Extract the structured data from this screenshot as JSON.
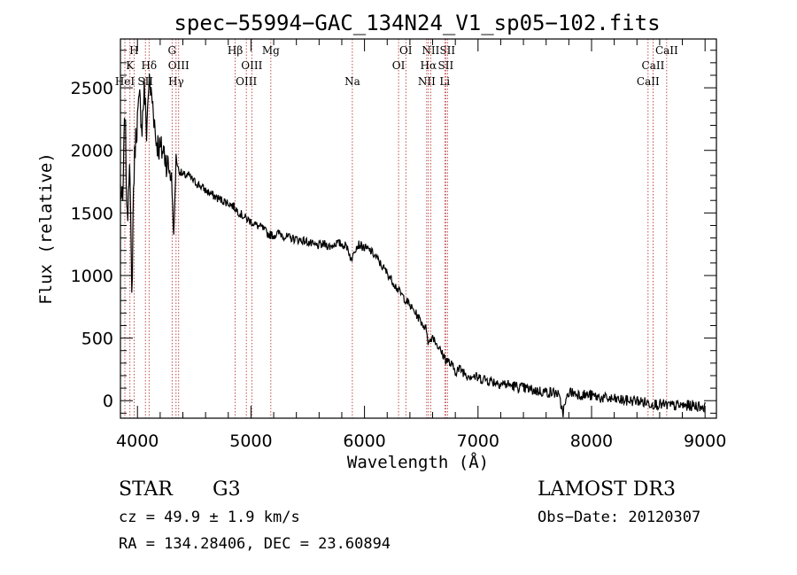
{
  "chart_data": {
    "type": "line",
    "title": "spec−55994−GAC_134N24_V1_sp05−102.fits",
    "xlabel": "Wavelength (Å)",
    "ylabel": "Flux (relative)",
    "xlim": [
      3850,
      9100
    ],
    "ylim": [
      -140,
      2890
    ],
    "xticks": [
      4000,
      5000,
      6000,
      7000,
      8000,
      9000
    ],
    "yticks": [
      0,
      500,
      1000,
      1500,
      2000,
      2500
    ],
    "series": [
      {
        "name": "flux",
        "x": [
          3850,
          3870,
          3890,
          3910,
          3930,
          3950,
          3965,
          3980,
          4000,
          4020,
          4040,
          4060,
          4080,
          4100,
          4120,
          4140,
          4160,
          4180,
          4200,
          4230,
          4260,
          4300,
          4320,
          4340,
          4360,
          4400,
          4450,
          4500,
          4550,
          4600,
          4650,
          4700,
          4750,
          4800,
          4850,
          4900,
          4950,
          5000,
          5050,
          5100,
          5150,
          5200,
          5250,
          5300,
          5350,
          5400,
          5450,
          5500,
          5550,
          5600,
          5650,
          5700,
          5750,
          5800,
          5850,
          5890,
          5900,
          5950,
          6000,
          6050,
          6100,
          6150,
          6200,
          6250,
          6300,
          6350,
          6400,
          6450,
          6500,
          6550,
          6563,
          6600,
          6650,
          6700,
          6750,
          6800,
          6850,
          6900,
          6950,
          7000,
          7050,
          7100,
          7150,
          7200,
          7300,
          7400,
          7500,
          7600,
          7700,
          7750,
          7800,
          7900,
          8000,
          8100,
          8200,
          8300,
          8400,
          8500,
          8600,
          8700,
          8800,
          8900,
          9000
        ],
        "y": [
          1700,
          1550,
          2350,
          1400,
          2000,
          800,
          1700,
          2050,
          2250,
          2400,
          2200,
          2500,
          2150,
          2550,
          2450,
          2350,
          2100,
          2050,
          2000,
          2000,
          1900,
          1800,
          1300,
          1950,
          1850,
          1800,
          1800,
          1750,
          1720,
          1680,
          1650,
          1620,
          1600,
          1580,
          1550,
          1500,
          1460,
          1430,
          1400,
          1380,
          1330,
          1320,
          1340,
          1310,
          1300,
          1290,
          1280,
          1270,
          1240,
          1240,
          1250,
          1230,
          1260,
          1250,
          1230,
          1100,
          1200,
          1250,
          1220,
          1200,
          1150,
          1080,
          1020,
          950,
          880,
          820,
          760,
          700,
          630,
          560,
          450,
          520,
          430,
          350,
          300,
          240,
          250,
          210,
          200,
          180,
          175,
          160,
          150,
          140,
          120,
          100,
          80,
          70,
          60,
          -90,
          70,
          50,
          40,
          20,
          10,
          0,
          0,
          -20,
          -30,
          -40,
          -40,
          -40,
          -50
        ]
      }
    ],
    "lines": [
      {
        "name": "H",
        "x": 3970,
        "row": 0
      },
      {
        "name": "K",
        "x": 3934,
        "row": 1
      },
      {
        "name": "HeI",
        "x": 3889,
        "row": 2
      },
      {
        "name": "Hδ",
        "x": 4102,
        "row": 1
      },
      {
        "name": "SII",
        "x": 4070,
        "row": 2
      },
      {
        "name": "G",
        "x": 4305,
        "row": 0
      },
      {
        "name": "OIII",
        "x": 4363,
        "row": 1
      },
      {
        "name": "Hγ",
        "x": 4340,
        "row": 2
      },
      {
        "name": "Hβ",
        "x": 4861,
        "row": 0
      },
      {
        "name": "OIII",
        "x": 5007,
        "row": 1
      },
      {
        "name": "OIII",
        "x": 4959,
        "row": 2
      },
      {
        "name": "Mg",
        "x": 5175,
        "row": 0
      },
      {
        "name": "Na",
        "x": 5893,
        "row": 2
      },
      {
        "name": "OI",
        "x": 6364,
        "row": 0
      },
      {
        "name": "OI",
        "x": 6300,
        "row": 1
      },
      {
        "name": "NII",
        "x": 6583,
        "row": 0
      },
      {
        "name": "Hα",
        "x": 6563,
        "row": 1
      },
      {
        "name": "NII",
        "x": 6548,
        "row": 2
      },
      {
        "name": "SII",
        "x": 6731,
        "row": 0
      },
      {
        "name": "SII",
        "x": 6716,
        "row": 1
      },
      {
        "name": "Li",
        "x": 6707,
        "row": 2
      },
      {
        "name": "CaII",
        "x": 8662,
        "row": 0
      },
      {
        "name": "CaII",
        "x": 8542,
        "row": 1
      },
      {
        "name": "CaII",
        "x": 8498,
        "row": 2
      }
    ]
  },
  "info": {
    "class": "STAR",
    "subclass": "G3",
    "survey": "LAMOST DR3",
    "cz": "cz = 49.9 ± 1.9 km/s",
    "obs_date": "Obs−Date: 20120307",
    "radec": "RA = 134.28406, DEC =  23.60894"
  },
  "colors": {
    "line_marker": "#b22222",
    "spectrum": "#000000"
  }
}
